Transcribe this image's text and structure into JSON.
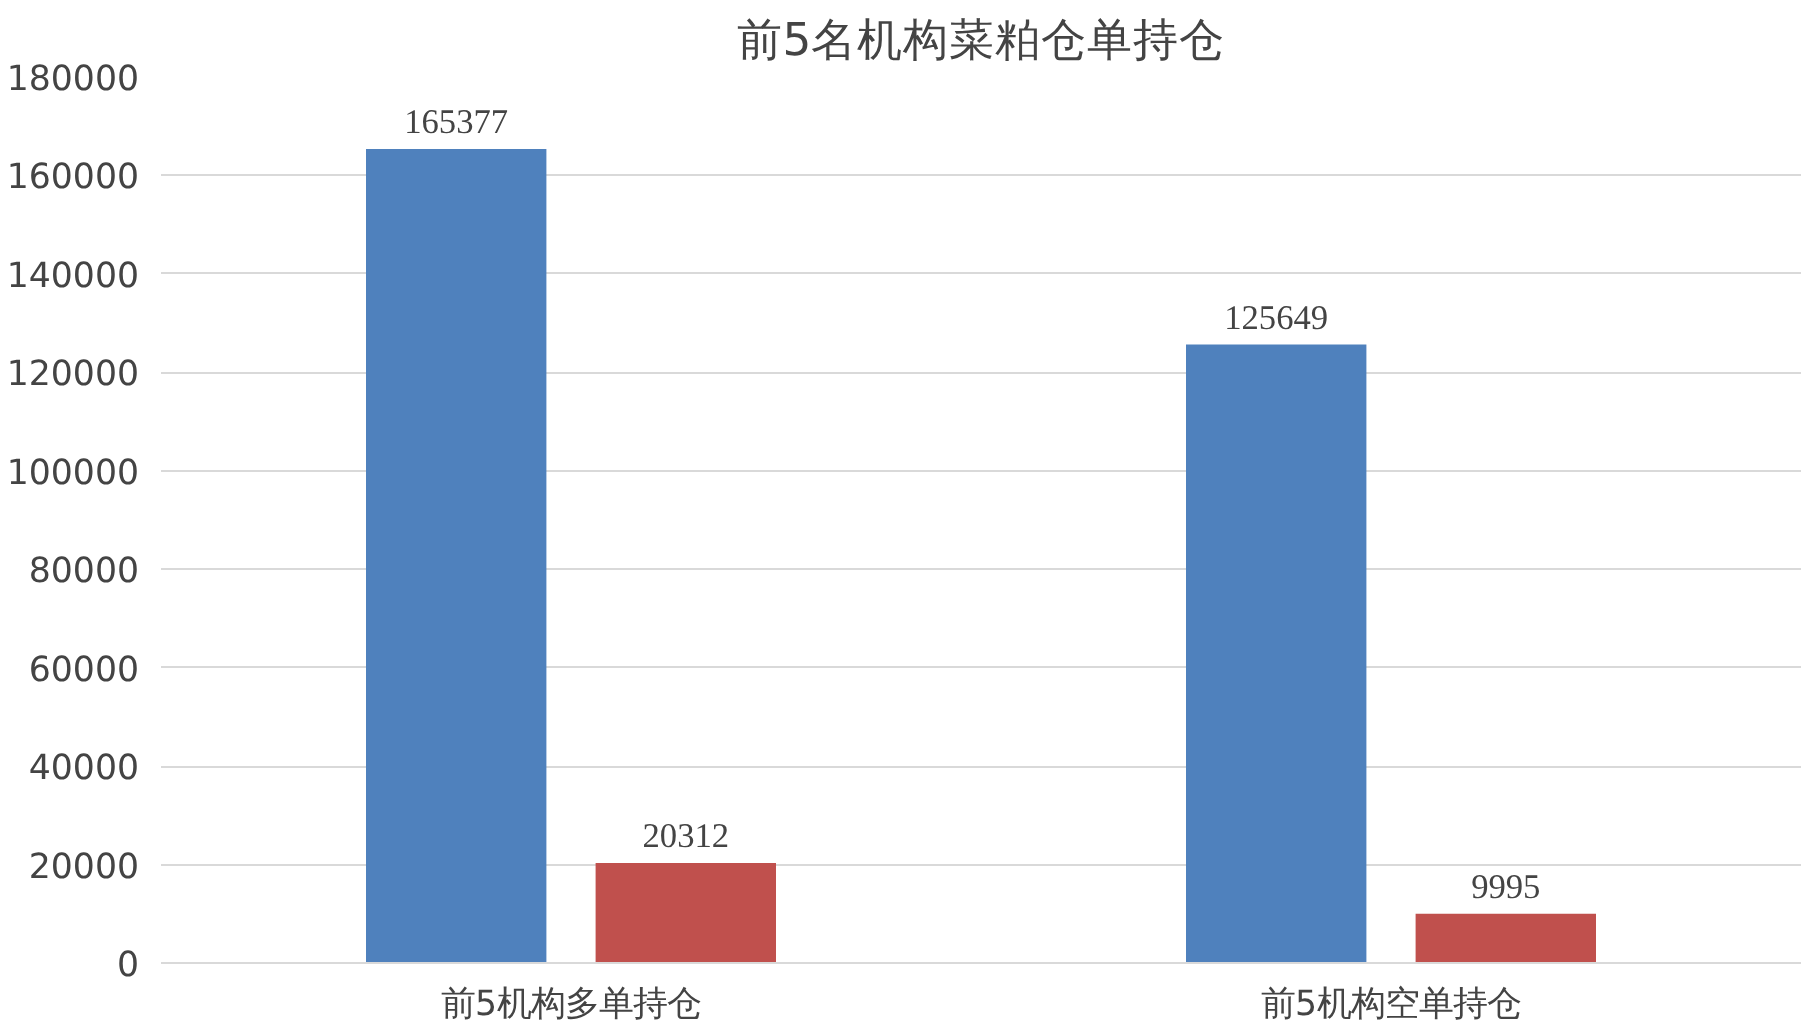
{
  "chart_data": {
    "type": "bar",
    "title": "前5名机构菜粕仓单持仓",
    "categories": [
      "前5机构多单持仓",
      "前5机构空单持仓"
    ],
    "series": [
      {
        "color": "#4f81bd",
        "values": [
          165377,
          125649
        ]
      },
      {
        "color": "#c0504d",
        "values": [
          20312,
          9995
        ]
      }
    ],
    "ylim": [
      0,
      180000
    ],
    "yticks": [
      0,
      20000,
      40000,
      60000,
      80000,
      100000,
      120000,
      140000,
      160000,
      180000
    ],
    "grid": "y",
    "data_labels": true
  }
}
